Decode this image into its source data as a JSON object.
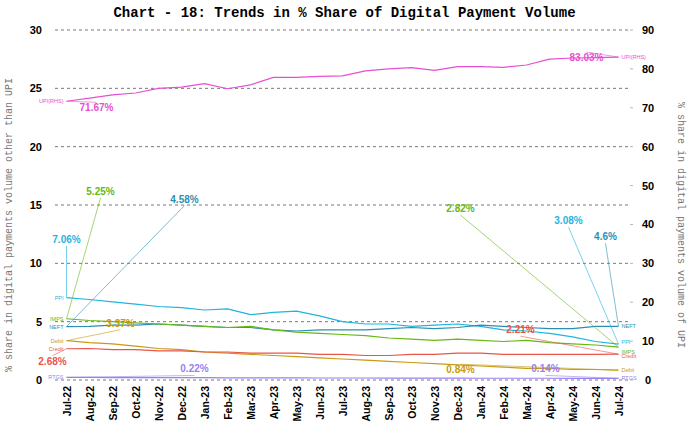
{
  "chart_data": {
    "type": "line",
    "title": "Chart - 18: Trends in % Share of Digital Payment Volume",
    "y_label": "% share in digital payments volume other than UPI",
    "y2_label": "% share in digital payments volume of UPI",
    "categories": [
      "Jul-22",
      "Aug-22",
      "Sep-22",
      "Oct-22",
      "Nov-22",
      "Dec-22",
      "Jan-23",
      "Feb-23",
      "Mar-23",
      "Apr-23",
      "May-23",
      "Jun-23",
      "Jul-23",
      "Aug-23",
      "Sep-23",
      "Oct-23",
      "Nov-23",
      "Dec-23",
      "Jan-24",
      "Feb-24",
      "Mar-24",
      "Apr-24",
      "May-24",
      "Jun-24",
      "Jul-24"
    ],
    "ylim": [
      0,
      30
    ],
    "yticks": [
      0,
      5,
      10,
      15,
      20,
      25,
      30
    ],
    "y2lim": [
      0,
      90
    ],
    "y2ticks": [
      0,
      10,
      20,
      30,
      40,
      50,
      60,
      70,
      80,
      90
    ],
    "grid": true,
    "data_labels": true,
    "series": [
      {
        "name": "UPI(RHS)",
        "color": "#e64fd2",
        "axis": "y2",
        "values": [
          71.67,
          72.5,
          73.3,
          73.8,
          75.0,
          75.3,
          76.2,
          74.9,
          75.9,
          77.8,
          77.8,
          78.1,
          78.2,
          79.5,
          80.0,
          80.3,
          79.6,
          80.6,
          80.6,
          80.4,
          81.0,
          82.5,
          82.8,
          82.9,
          83.03
        ],
        "value_labels": [
          "71.67%",
          null,
          null,
          null,
          null,
          null,
          null,
          null,
          null,
          null,
          null,
          null,
          null,
          null,
          null,
          null,
          null,
          null,
          null,
          null,
          null,
          null,
          null,
          null,
          "83.03%"
        ]
      },
      {
        "name": "PPI",
        "color": "#1fb5e0",
        "values": [
          7.06,
          6.9,
          6.7,
          6.5,
          6.3,
          6.2,
          6.0,
          6.1,
          5.6,
          5.8,
          5.9,
          5.5,
          5.0,
          4.8,
          4.8,
          4.6,
          4.7,
          4.8,
          4.6,
          4.3,
          4.2,
          4.0,
          3.7,
          3.3,
          3.08
        ],
        "value_labels": [
          "7.06%",
          null,
          null,
          null,
          null,
          null,
          null,
          null,
          null,
          null,
          null,
          null,
          null,
          null,
          null,
          null,
          null,
          null,
          null,
          null,
          null,
          null,
          null,
          null,
          "3.08%"
        ]
      },
      {
        "name": "NEFT",
        "color": "#2b8fb3",
        "values": [
          4.58,
          4.6,
          4.7,
          4.7,
          4.8,
          4.7,
          4.6,
          4.5,
          4.5,
          4.3,
          4.2,
          4.3,
          4.3,
          4.3,
          4.4,
          4.5,
          4.4,
          4.5,
          4.7,
          4.6,
          4.5,
          4.4,
          4.4,
          4.6,
          4.6
        ],
        "value_labels": [
          "4.58%",
          null,
          null,
          null,
          null,
          null,
          null,
          null,
          null,
          null,
          null,
          null,
          null,
          null,
          null,
          null,
          null,
          null,
          null,
          null,
          null,
          null,
          null,
          null,
          "4.6%"
        ]
      },
      {
        "name": "IMPS",
        "color": "#66b814",
        "values": [
          5.25,
          5.1,
          5.0,
          4.9,
          4.8,
          4.7,
          4.6,
          4.5,
          4.6,
          4.3,
          4.1,
          4.0,
          3.9,
          3.8,
          3.6,
          3.5,
          3.4,
          3.5,
          3.4,
          3.3,
          3.4,
          3.2,
          3.1,
          3.0,
          2.82
        ],
        "value_labels": [
          "5.25%",
          null,
          null,
          null,
          null,
          null,
          null,
          null,
          null,
          null,
          null,
          null,
          null,
          null,
          null,
          null,
          null,
          null,
          null,
          null,
          null,
          null,
          null,
          null,
          "2.82%"
        ]
      },
      {
        "name": "Debit",
        "color": "#c99a12",
        "values": [
          3.37,
          3.2,
          3.1,
          2.9,
          2.7,
          2.6,
          2.4,
          2.3,
          2.2,
          2.1,
          2.0,
          1.9,
          1.8,
          1.7,
          1.6,
          1.5,
          1.4,
          1.3,
          1.2,
          1.1,
          1.0,
          1.0,
          0.9,
          0.9,
          0.84
        ],
        "value_labels": [
          "3.37%",
          null,
          null,
          null,
          null,
          null,
          null,
          null,
          null,
          null,
          null,
          null,
          null,
          null,
          null,
          null,
          null,
          null,
          null,
          null,
          null,
          null,
          null,
          null,
          "0.84%"
        ]
      },
      {
        "name": "Credit",
        "color": "#e8554a",
        "values": [
          2.68,
          2.7,
          2.6,
          2.6,
          2.5,
          2.5,
          2.4,
          2.4,
          2.3,
          2.3,
          2.3,
          2.2,
          2.2,
          2.1,
          2.1,
          2.2,
          2.2,
          2.3,
          2.3,
          2.2,
          2.2,
          2.2,
          2.2,
          2.2,
          2.21
        ],
        "value_labels": [
          "2.68%",
          null,
          null,
          null,
          null,
          null,
          null,
          null,
          null,
          null,
          null,
          null,
          null,
          null,
          null,
          null,
          null,
          null,
          null,
          null,
          null,
          null,
          null,
          null,
          "2.21%"
        ]
      },
      {
        "name": "RTGS",
        "color": "#9a7ff0",
        "values": [
          0.22,
          0.22,
          0.21,
          0.21,
          0.2,
          0.2,
          0.2,
          0.19,
          0.19,
          0.18,
          0.18,
          0.17,
          0.17,
          0.17,
          0.16,
          0.16,
          0.16,
          0.16,
          0.15,
          0.15,
          0.15,
          0.15,
          0.14,
          0.14,
          0.14
        ],
        "value_labels": [
          "0.22%",
          null,
          null,
          null,
          null,
          null,
          null,
          null,
          null,
          null,
          null,
          null,
          null,
          null,
          null,
          null,
          null,
          null,
          null,
          null,
          null,
          null,
          null,
          null,
          "0.14%"
        ]
      }
    ]
  }
}
